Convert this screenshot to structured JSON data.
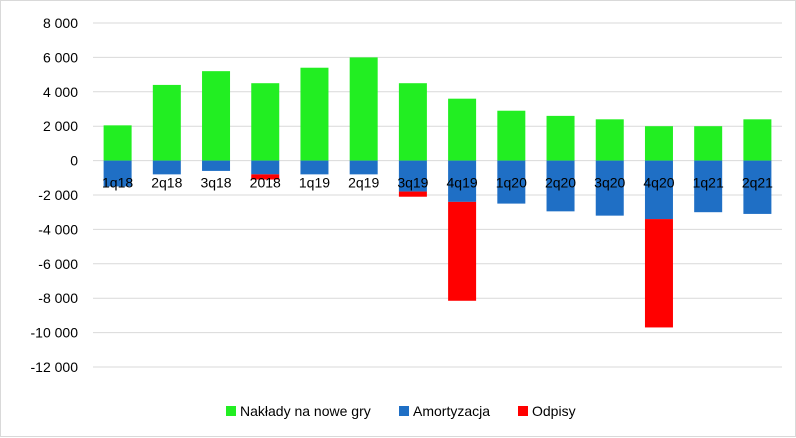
{
  "chart_data": {
    "type": "bar",
    "stacked": true,
    "categories": [
      "1q18",
      "2q18",
      "3q18",
      "2018",
      "1q19",
      "2q19",
      "3q19",
      "4q19",
      "1q20",
      "2q20",
      "3q20",
      "4q20",
      "1q21",
      "2q21"
    ],
    "series": [
      {
        "name": "Nakłady na nowe gry",
        "color": "#22ee22",
        "values": [
          2050,
          4400,
          5200,
          4500,
          5400,
          6000,
          4500,
          3600,
          2900,
          2600,
          2400,
          2000,
          2000,
          2400
        ]
      },
      {
        "name": "Amortyzacja",
        "color": "#1f6fc5",
        "values": [
          -1500,
          -800,
          -600,
          -800,
          -800,
          -800,
          -1800,
          -2400,
          -2500,
          -2950,
          -3200,
          -3400,
          -3000,
          -3100
        ]
      },
      {
        "name": "Odpisy",
        "color": "#ff0000",
        "values": [
          0,
          0,
          0,
          -300,
          0,
          0,
          -300,
          -5750,
          0,
          0,
          0,
          -6300,
          0,
          0
        ]
      }
    ],
    "yticks": [
      "8 000",
      "6 000",
      "4 000",
      "2 000",
      "0",
      "-2 000",
      "-4 000",
      "-6 000",
      "-8 000",
      "-10 000",
      "-12 000"
    ],
    "ylim": [
      -12000,
      8000
    ],
    "grid": true,
    "legend": "bottom"
  }
}
